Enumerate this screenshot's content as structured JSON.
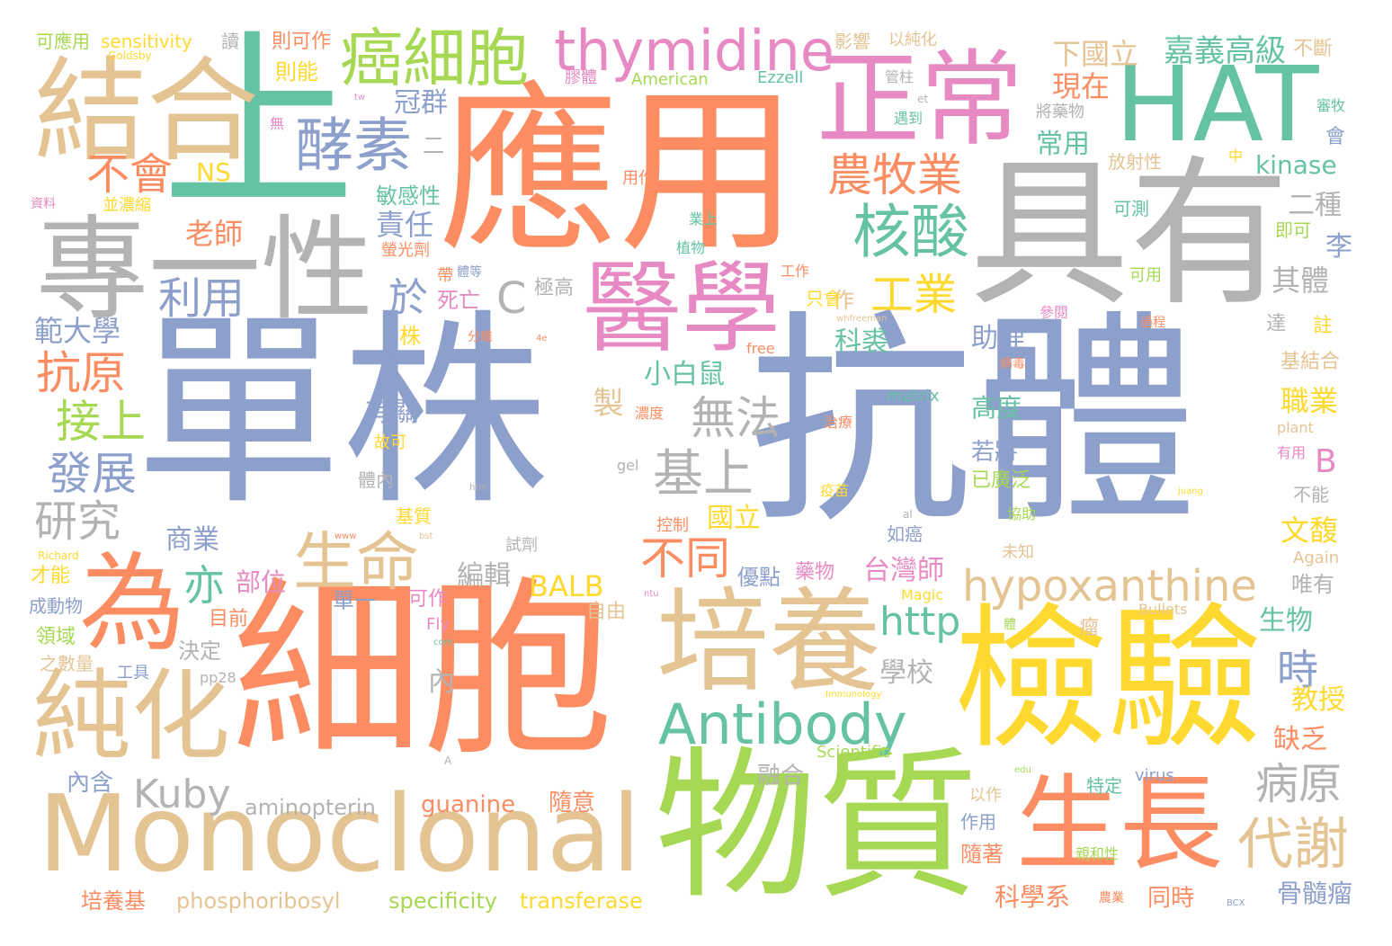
{
  "palette": {
    "orange": "#fc8d62",
    "teal": "#66c2a5",
    "blue": "#8da0cb",
    "pink": "#e78ac3",
    "green": "#a6d854",
    "yellow": "#ffd92f",
    "tan": "#e5c494",
    "gray": "#b3b3b3"
  },
  "words": [
    {
      "text": "單株",
      "color": "blue"
    },
    {
      "text": "抗體",
      "color": "blue"
    },
    {
      "text": "細胞",
      "color": "orange"
    },
    {
      "text": "應用",
      "color": "orange"
    },
    {
      "text": "上",
      "color": "teal"
    },
    {
      "text": "具有",
      "color": "gray"
    },
    {
      "text": "物質",
      "color": "green"
    },
    {
      "text": "檢驗",
      "color": "yellow"
    },
    {
      "text": "Monoclonal",
      "color": "tan"
    },
    {
      "text": "HAT",
      "color": "teal"
    },
    {
      "text": "專一性",
      "color": "gray"
    },
    {
      "text": "結合",
      "color": "tan"
    },
    {
      "text": "培養",
      "color": "tan"
    },
    {
      "text": "生長",
      "color": "orange"
    },
    {
      "text": "正常",
      "color": "pink"
    },
    {
      "text": "醫學",
      "color": "pink"
    },
    {
      "text": "為",
      "color": "orange"
    },
    {
      "text": "純化",
      "color": "tan"
    },
    {
      "text": "癌細胞",
      "color": "green"
    },
    {
      "text": "thymidine",
      "color": "pink"
    },
    {
      "text": "Antibody",
      "color": "teal"
    },
    {
      "text": "hypoxanthine",
      "color": "tan"
    },
    {
      "text": "生命",
      "color": "tan"
    },
    {
      "text": "酵素",
      "color": "blue"
    },
    {
      "text": "代謝",
      "color": "tan"
    },
    {
      "text": "核酸",
      "color": "teal"
    },
    {
      "text": "農牧業",
      "color": "orange"
    },
    {
      "text": "嘉義高級",
      "color": "teal"
    },
    {
      "text": "不會",
      "color": "orange"
    },
    {
      "text": "Kuby",
      "color": "gray"
    },
    {
      "text": "利用",
      "color": "blue"
    },
    {
      "text": "抗原",
      "color": "orange"
    },
    {
      "text": "接上",
      "color": "green"
    },
    {
      "text": "發展",
      "color": "blue"
    },
    {
      "text": "研究",
      "color": "gray"
    },
    {
      "text": "工業",
      "color": "yellow"
    },
    {
      "text": "無法",
      "color": "gray"
    },
    {
      "text": "基上",
      "color": "gray"
    },
    {
      "text": "不同",
      "color": "orange"
    },
    {
      "text": "病原",
      "color": "gray"
    },
    {
      "text": "http",
      "color": "teal"
    },
    {
      "text": "於",
      "color": "blue"
    },
    {
      "text": "亦",
      "color": "teal"
    },
    {
      "text": "時",
      "color": "blue"
    },
    {
      "text": "C",
      "color": "gray"
    },
    {
      "text": "B",
      "color": "pink"
    },
    {
      "text": "BALB",
      "color": "yellow"
    },
    {
      "text": "aminopterin",
      "color": "gray"
    },
    {
      "text": "guanine",
      "color": "orange"
    },
    {
      "text": "phosphoribosyl",
      "color": "tan"
    },
    {
      "text": "specificity",
      "color": "green"
    },
    {
      "text": "transferase",
      "color": "yellow"
    },
    {
      "text": "kinase",
      "color": "teal"
    },
    {
      "text": "NS",
      "color": "yellow"
    },
    {
      "text": "sensitivity",
      "color": "yellow"
    },
    {
      "text": "American",
      "color": "green"
    },
    {
      "text": "Ezzell",
      "color": "teal"
    },
    {
      "text": "Goldsby",
      "color": "yellow"
    },
    {
      "text": "matrix",
      "color": "teal"
    },
    {
      "text": "free",
      "color": "orange"
    },
    {
      "text": "gel",
      "color": "gray"
    },
    {
      "text": "plant",
      "color": "tan"
    },
    {
      "text": "Again",
      "color": "tan"
    },
    {
      "text": "virus",
      "color": "blue"
    },
    {
      "text": "Scientific",
      "color": "green"
    },
    {
      "text": "Magic",
      "color": "yellow"
    },
    {
      "text": "Bullets",
      "color": "tan"
    },
    {
      "text": "Fly",
      "color": "pink"
    },
    {
      "text": "Richard",
      "color": "yellow"
    },
    {
      "text": "pp28",
      "color": "gray"
    },
    {
      "text": "www",
      "color": "orange"
    },
    {
      "text": "htm",
      "color": "gray"
    },
    {
      "text": "bst",
      "color": "tan"
    },
    {
      "text": "com",
      "color": "teal"
    },
    {
      "text": "edu",
      "color": "green"
    },
    {
      "text": "ntu",
      "color": "pink"
    },
    {
      "text": "tw",
      "color": "pink"
    },
    {
      "text": "et",
      "color": "gray"
    },
    {
      "text": "al",
      "color": "gray"
    },
    {
      "text": "juang",
      "color": "yellow"
    },
    {
      "text": "Immunology",
      "color": "yellow"
    },
    {
      "text": "whfreeman",
      "color": "tan"
    },
    {
      "text": "BCX",
      "color": "blue"
    },
    {
      "text": "4e",
      "color": "orange"
    },
    {
      "text": "A",
      "color": "gray"
    },
    {
      "text": "可應用",
      "color": "green"
    },
    {
      "text": "則可作",
      "color": "orange"
    },
    {
      "text": "則能",
      "color": "yellow"
    },
    {
      "text": "下國立",
      "color": "tan"
    },
    {
      "text": "現在",
      "color": "orange"
    },
    {
      "text": "冠群",
      "color": "blue"
    },
    {
      "text": "常用",
      "color": "teal"
    },
    {
      "text": "責任",
      "color": "blue"
    },
    {
      "text": "敏感性",
      "color": "teal"
    },
    {
      "text": "老師",
      "color": "orange"
    },
    {
      "text": "作",
      "color": "tan"
    },
    {
      "text": "死亡",
      "color": "pink"
    },
    {
      "text": "極高",
      "color": "gray"
    },
    {
      "text": "只會",
      "color": "yellow"
    },
    {
      "text": "科裘",
      "color": "teal"
    },
    {
      "text": "助理",
      "color": "blue"
    },
    {
      "text": "範大學",
      "color": "blue"
    },
    {
      "text": "小白鼠",
      "color": "teal"
    },
    {
      "text": "有關",
      "color": "blue"
    },
    {
      "text": "製",
      "color": "tan"
    },
    {
      "text": "高度",
      "color": "teal"
    },
    {
      "text": "若將",
      "color": "blue"
    },
    {
      "text": "已廣泛",
      "color": "green"
    },
    {
      "text": "商業",
      "color": "blue"
    },
    {
      "text": "國立",
      "color": "yellow"
    },
    {
      "text": "台灣師",
      "color": "pink"
    },
    {
      "text": "文馥",
      "color": "yellow"
    },
    {
      "text": "職業",
      "color": "yellow"
    },
    {
      "text": "教授",
      "color": "yellow"
    },
    {
      "text": "缺乏",
      "color": "orange"
    },
    {
      "text": "生物",
      "color": "teal"
    },
    {
      "text": "學校",
      "color": "gray"
    },
    {
      "text": "部位",
      "color": "pink"
    },
    {
      "text": "編輯",
      "color": "gray"
    },
    {
      "text": "優點",
      "color": "blue"
    },
    {
      "text": "藥物",
      "color": "pink"
    },
    {
      "text": "唯有",
      "color": "gray"
    },
    {
      "text": "才能",
      "color": "yellow"
    },
    {
      "text": "成動物",
      "color": "blue"
    },
    {
      "text": "目前",
      "color": "orange"
    },
    {
      "text": "領域",
      "color": "green"
    },
    {
      "text": "決定",
      "color": "gray"
    },
    {
      "text": "之數量",
      "color": "tan"
    },
    {
      "text": "工具",
      "color": "blue"
    },
    {
      "text": "內",
      "color": "gray"
    },
    {
      "text": "內含",
      "color": "blue"
    },
    {
      "text": "融合",
      "color": "gray"
    },
    {
      "text": "以作",
      "color": "tan"
    },
    {
      "text": "特定",
      "color": "teal"
    },
    {
      "text": "作用",
      "color": "blue"
    },
    {
      "text": "隨著",
      "color": "orange"
    },
    {
      "text": "科學系",
      "color": "orange"
    },
    {
      "text": "同時",
      "color": "orange"
    },
    {
      "text": "骨髓瘤",
      "color": "blue"
    },
    {
      "text": "培養基",
      "color": "orange"
    },
    {
      "text": "隨意",
      "color": "orange"
    },
    {
      "text": "親和性",
      "color": "green"
    },
    {
      "text": "農業",
      "color": "orange"
    },
    {
      "text": "單一",
      "color": "blue"
    },
    {
      "text": "可作",
      "color": "pink"
    },
    {
      "text": "自由",
      "color": "tan"
    },
    {
      "text": "瘤",
      "color": "tan"
    },
    {
      "text": "體",
      "color": "green"
    },
    {
      "text": "未知",
      "color": "tan"
    },
    {
      "text": "協助",
      "color": "green"
    },
    {
      "text": "如癌",
      "color": "blue"
    },
    {
      "text": "試劑",
      "color": "gray"
    },
    {
      "text": "控制",
      "color": "orange"
    },
    {
      "text": "疫苗",
      "color": "yellow"
    },
    {
      "text": "基質",
      "color": "yellow"
    },
    {
      "text": "體內",
      "color": "gray"
    },
    {
      "text": "故可",
      "color": "yellow"
    },
    {
      "text": "治療",
      "color": "orange"
    },
    {
      "text": "濃度",
      "color": "orange"
    },
    {
      "text": "參考",
      "color": "blue"
    },
    {
      "text": "分離",
      "color": "orange"
    },
    {
      "text": "株",
      "color": "yellow"
    },
    {
      "text": "帶",
      "color": "orange"
    },
    {
      "text": "體等",
      "color": "blue"
    },
    {
      "text": "植物",
      "color": "teal"
    },
    {
      "text": "工作",
      "color": "orange"
    },
    {
      "text": "業上",
      "color": "teal"
    },
    {
      "text": "螢光劑",
      "color": "orange"
    },
    {
      "text": "用作",
      "color": "orange"
    },
    {
      "text": "二種",
      "color": "gray"
    },
    {
      "text": "其體",
      "color": "gray"
    },
    {
      "text": "即可",
      "color": "green"
    },
    {
      "text": "可用",
      "color": "green"
    },
    {
      "text": "李",
      "color": "blue"
    },
    {
      "text": "可測",
      "color": "teal"
    },
    {
      "text": "放射性",
      "color": "tan"
    },
    {
      "text": "中",
      "color": "yellow"
    },
    {
      "text": "會",
      "color": "blue"
    },
    {
      "text": "審牧",
      "color": "teal"
    },
    {
      "text": "將藥物",
      "color": "gray"
    },
    {
      "text": "遇到",
      "color": "teal"
    },
    {
      "text": "管柱",
      "color": "gray"
    },
    {
      "text": "影響",
      "color": "tan"
    },
    {
      "text": "以純化",
      "color": "tan"
    },
    {
      "text": "不斷",
      "color": "tan"
    },
    {
      "text": "膠體",
      "color": "pink"
    },
    {
      "text": "讀",
      "color": "gray"
    },
    {
      "text": "無",
      "color": "pink"
    },
    {
      "text": "二",
      "color": "gray"
    },
    {
      "text": "資料",
      "color": "pink"
    },
    {
      "text": "並濃縮",
      "color": "yellow"
    },
    {
      "text": "參閱",
      "color": "pink"
    },
    {
      "text": "達",
      "color": "gray"
    },
    {
      "text": "註",
      "color": "yellow"
    },
    {
      "text": "基結合",
      "color": "tan"
    },
    {
      "text": "過程",
      "color": "orange"
    },
    {
      "text": "病毒",
      "color": "orange"
    },
    {
      "text": "有用",
      "color": "pink"
    },
    {
      "text": "不能",
      "color": "gray"
    }
  ]
}
